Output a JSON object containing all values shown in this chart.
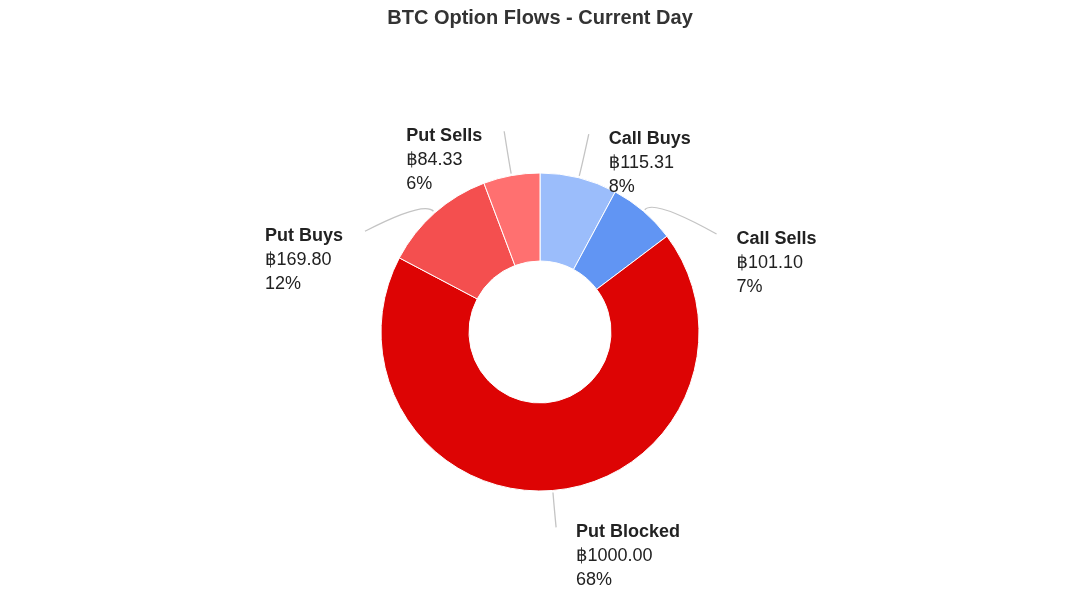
{
  "chart_data": {
    "type": "donut",
    "title": "BTC Option Flows - Current Day",
    "categories": [
      "Call Buys",
      "Call Sells",
      "Put Blocked",
      "Put Buys",
      "Put Sells"
    ],
    "values": [
      115.31,
      101.1,
      1000.0,
      169.8,
      84.33
    ],
    "colors": [
      "#9bbdfb",
      "#6195f3",
      "#dd0404",
      "#f44f4f",
      "#ff7070"
    ],
    "value_labels": [
      "฿115.31\n8%",
      "฿101.10\n7%",
      "฿1000.00\n68%",
      "฿169.80\n12%",
      "฿84.33\n6%"
    ]
  }
}
